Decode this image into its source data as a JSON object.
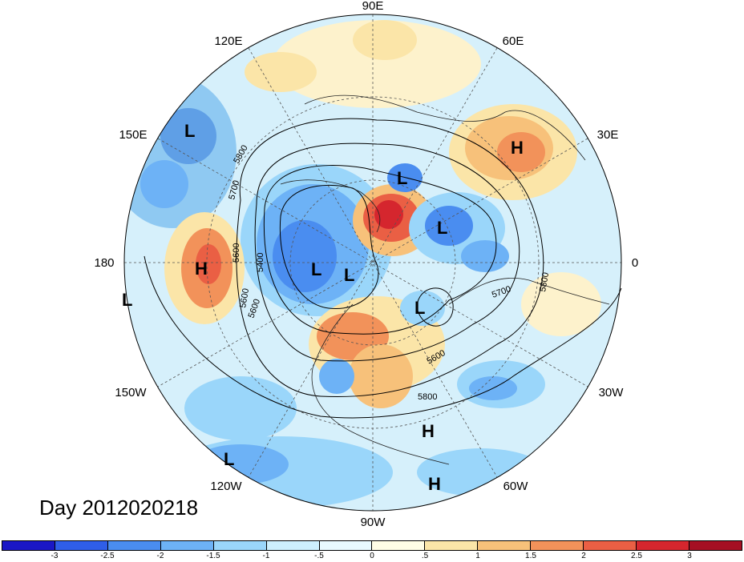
{
  "map": {
    "lon_labels": [
      "90E",
      "60E",
      "30E",
      "0",
      "30W",
      "60W",
      "90W",
      "120W",
      "150W",
      "180",
      "150E",
      "120E"
    ],
    "contours": [
      "5800",
      "5700",
      "5600",
      "5400",
      "5600",
      "5600",
      "5700",
      "5800",
      "5600",
      "5800"
    ],
    "pressure_systems": [
      "L",
      "H",
      "L",
      "L",
      "H",
      "L",
      "L",
      "L",
      "L",
      "H",
      "L",
      "H"
    ]
  },
  "title": "Day 2012020218",
  "colorbar": {
    "colors": [
      "#1a17c6",
      "#2f5ee8",
      "#4a8df0",
      "#6db2f6",
      "#9ad6fa",
      "#cdeffd",
      "#e8f9ff",
      "#fffde6",
      "#fbe5a8",
      "#f7c17a",
      "#f2925a",
      "#ea5f44",
      "#d5262e",
      "#a50f23"
    ],
    "ticks": [
      "-3",
      "-2.5",
      "-2",
      "-1.5",
      "-1",
      "-.5",
      "0",
      ".5",
      "1",
      "1.5",
      "2",
      "2.5",
      "3"
    ]
  }
}
